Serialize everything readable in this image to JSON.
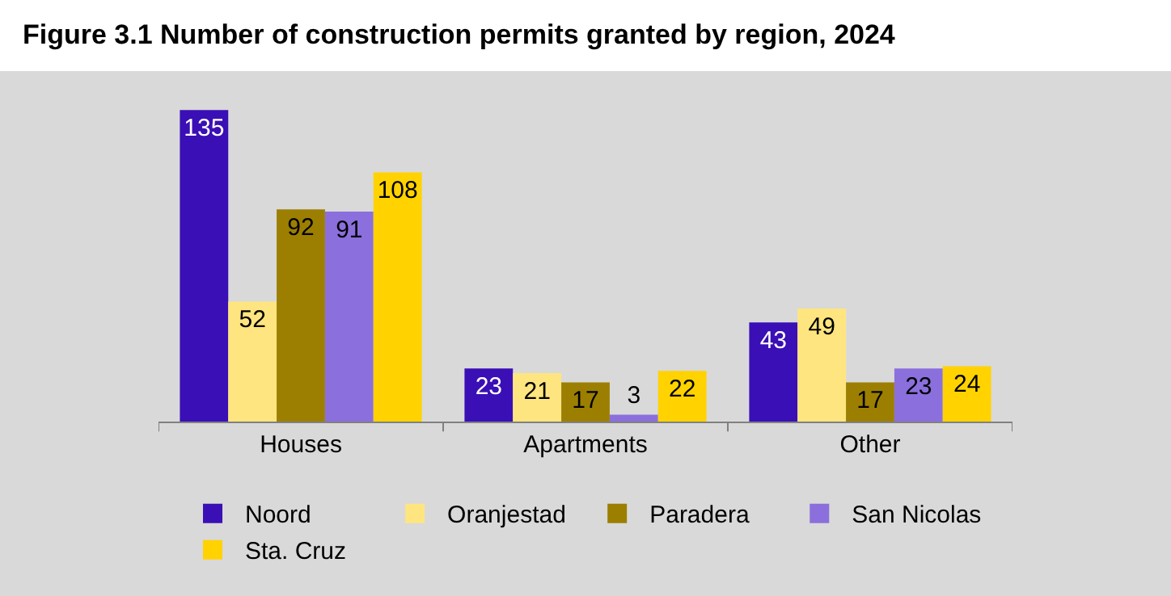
{
  "chart_data": {
    "type": "bar",
    "title": "Figure 3.1 Number of construction permits granted by region, 2024",
    "categories": [
      "Houses",
      "Apartments",
      "Other"
    ],
    "series": [
      {
        "name": "Noord",
        "color": "#3a0fb5",
        "values": [
          135,
          23,
          43
        ]
      },
      {
        "name": "Oranjestad",
        "color": "#ffe57f",
        "values": [
          52,
          21,
          49
        ]
      },
      {
        "name": "Paradera",
        "color": "#9c7f00",
        "values": [
          92,
          17,
          17
        ]
      },
      {
        "name": "San Nicolas",
        "color": "#8b6fdc",
        "values": [
          91,
          3,
          23
        ]
      },
      {
        "name": "Sta. Cruz",
        "color": "#ffd200",
        "values": [
          108,
          22,
          24
        ]
      }
    ],
    "data_labels": true,
    "legend": "bottom",
    "grid": false
  }
}
